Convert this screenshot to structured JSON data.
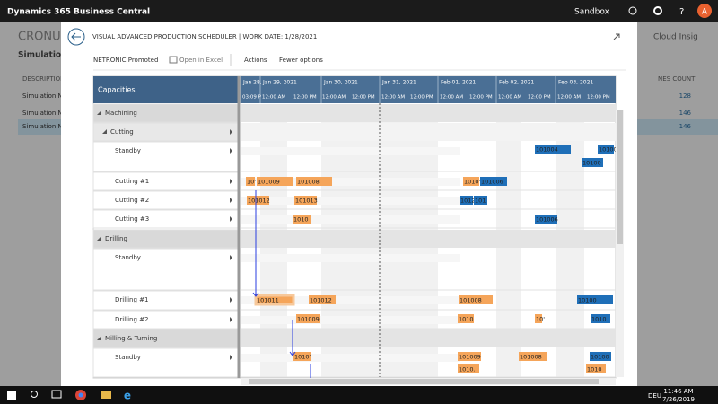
{
  "top_bar": {
    "app": "Dynamics 365 Business Central",
    "environment": "Sandbox",
    "avatar": "A"
  },
  "background": {
    "company": "CRONUS I",
    "section": "Simulations:",
    "column": "DESCRIPTION",
    "rows": [
      "Simulation N",
      "Simulation N",
      "Simulation N"
    ],
    "right_title": "Cloud Insig",
    "right_column": "NES COUNT",
    "counts": [
      "128",
      "146",
      "146"
    ]
  },
  "dialog": {
    "title": "VISUAL ADVANCED PRODUCTION SCHEDULER | WORK DATE: 1/28/2021",
    "toolbar": [
      "NETRONIC Promoted",
      "Open in Excel",
      "Actions",
      "Fewer options"
    ]
  },
  "gantt": {
    "header": "Capacities",
    "dates": [
      "Jan 28,",
      "Jan 29, 2021",
      "Jan 30, 2021",
      "Jan 31, 2021",
      "Feb 01, 2021",
      "Feb 02, 2021",
      "Feb 03, 2021"
    ],
    "times": [
      "03:09 P",
      "12:00 AM",
      "12:00 PM",
      "12:00 AM",
      "12:00 PM",
      "12:00 AM",
      "12:00 PM",
      "12:00 AM",
      "12:00 PM",
      "12:00 AM",
      "12:00 PM",
      "12:00 AM",
      "12:00 PM"
    ],
    "rows": [
      "Machining",
      "Cutting",
      "Standby",
      "Cutting #1",
      "Cutting #2",
      "Cutting #3",
      "Drilling",
      "Standby",
      "Drilling #1",
      "Drilling #2",
      "Milling & Turning",
      "Standby"
    ],
    "bars": [
      {
        "label": "101004",
        "color": "#1f6fb8"
      },
      {
        "label": "10100",
        "color": "#1f6fb8"
      },
      {
        "label": "10100",
        "color": "#1f6fb8"
      },
      {
        "label": "10'",
        "color": "#f5a55a"
      },
      {
        "label": "101009",
        "color": "#f5a55a"
      },
      {
        "label": "101008",
        "color": "#f5a55a"
      },
      {
        "label": "1010'",
        "color": "#f5a55a"
      },
      {
        "label": "101006",
        "color": "#1f6fb8"
      },
      {
        "label": "101012",
        "color": "#f5a55a"
      },
      {
        "label": "101013",
        "color": "#f5a55a"
      },
      {
        "label": "1012",
        "color": "#1f6fb8"
      },
      {
        "label": "101",
        "color": "#1f6fb8"
      },
      {
        "label": "1010",
        "color": "#f5a55a"
      },
      {
        "label": "101006",
        "color": "#1f6fb8"
      },
      {
        "label": "101011",
        "color": "#f5a55a"
      },
      {
        "label": "101012",
        "color": "#f5a55a"
      },
      {
        "label": "101008",
        "color": "#f5a55a"
      },
      {
        "label": "10100",
        "color": "#1f6fb8"
      },
      {
        "label": "101009",
        "color": "#f5a55a"
      },
      {
        "label": "1010",
        "color": "#f5a55a"
      },
      {
        "label": "10'",
        "color": "#f5a55a"
      },
      {
        "label": "1010",
        "color": "#1f6fb8"
      },
      {
        "label": "1010'",
        "color": "#f5a55a"
      },
      {
        "label": "101009",
        "color": "#f5a55a"
      },
      {
        "label": "1010.",
        "color": "#f5a55a"
      },
      {
        "label": "101008",
        "color": "#f5a55a"
      },
      {
        "label": "10100",
        "color": "#1f6fb8"
      },
      {
        "label": "1010",
        "color": "#f5a55a"
      }
    ]
  },
  "taskbar": {
    "language": "DEU",
    "time": "11:46 AM",
    "date": "7/26/2019"
  }
}
